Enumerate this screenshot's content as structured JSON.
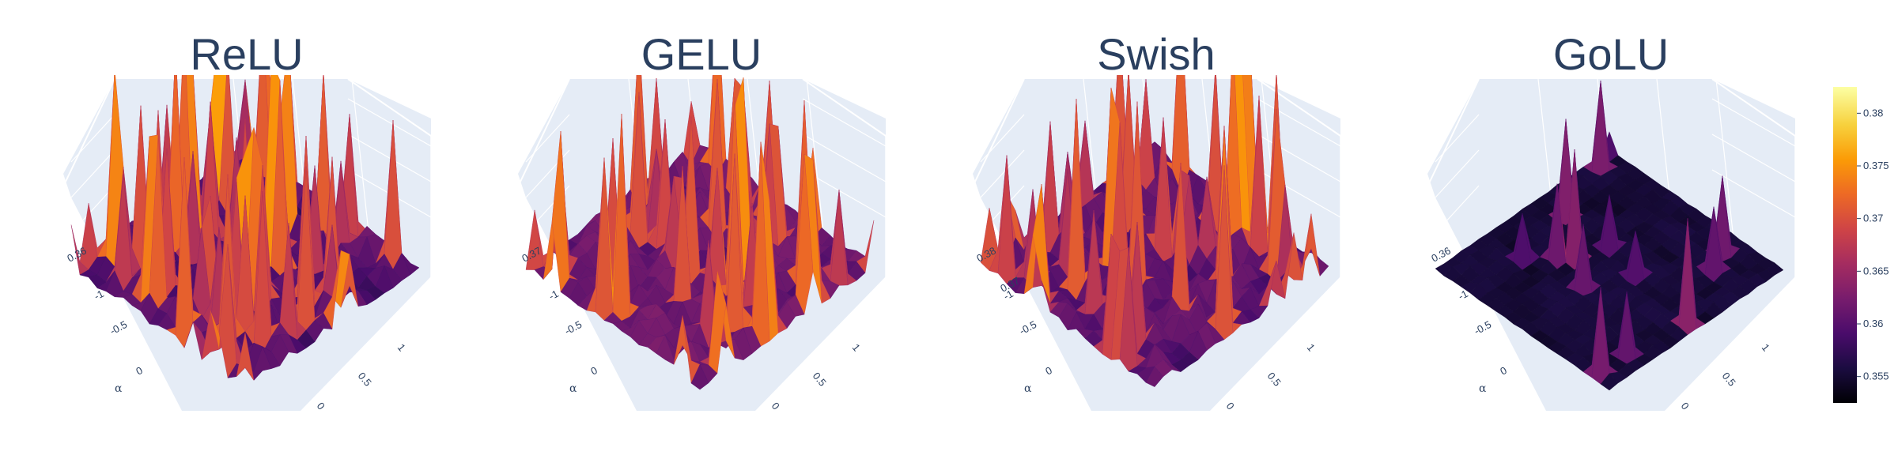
{
  "chart_data": {
    "type": "surface",
    "colorscale": "inferno",
    "colors": {
      "scene_background": "#e5ecf6",
      "gridline": "#ffffff",
      "text": "#2a3f5f",
      "colorscale_stops": [
        "#000004",
        "#1b0c41",
        "#4a0c6b",
        "#781c6d",
        "#a52c60",
        "#cf4446",
        "#ed6925",
        "#fb9b06",
        "#f7d13d",
        "#fcffa4"
      ]
    },
    "colorbar": {
      "range": [
        0.3525,
        0.3825
      ],
      "ticks": [
        "0.38",
        "0.375",
        "0.37",
        "0.365",
        "0.36",
        "0.355"
      ],
      "tick_values": [
        0.38,
        0.375,
        0.37,
        0.365,
        0.36,
        0.355
      ]
    },
    "panels": [
      {
        "title": "ReLU",
        "z_tick": "0.36",
        "alpha_ticks": [
          "-1",
          "-0.5",
          "0"
        ],
        "beta_ticks": [
          "1",
          "0.5",
          "0"
        ],
        "axis_label": "α",
        "z_base": 0.356,
        "z_peak": 0.382,
        "roughness": 1.0,
        "hot_frac": 0.16
      },
      {
        "title": "GELU",
        "z_tick": "0.37",
        "alpha_ticks": [
          "-1",
          "-0.5",
          "0"
        ],
        "beta_ticks": [
          "1",
          "0.5",
          "0"
        ],
        "axis_label": "α",
        "z_base": 0.358,
        "z_peak": 0.381,
        "roughness": 1.0,
        "hot_frac": 0.12
      },
      {
        "title": "Swish",
        "z_tick": "0.38",
        "z_tick_2": "0.37",
        "alpha_ticks": [
          "-1",
          "-0.5",
          "0"
        ],
        "beta_ticks": [
          "1",
          "0.5",
          "0"
        ],
        "axis_label": "α",
        "z_base": 0.357,
        "z_peak": 0.381,
        "roughness": 1.0,
        "hot_frac": 0.12
      },
      {
        "title": "GoLU",
        "z_tick": "0.36",
        "alpha_ticks": [
          "-1",
          "-0.5",
          "0"
        ],
        "beta_ticks": [
          "1",
          "0.5",
          "0"
        ],
        "axis_label": "α",
        "z_base": 0.354,
        "z_peak": 0.37,
        "roughness": 0.55,
        "hot_frac": 0.02
      }
    ]
  }
}
